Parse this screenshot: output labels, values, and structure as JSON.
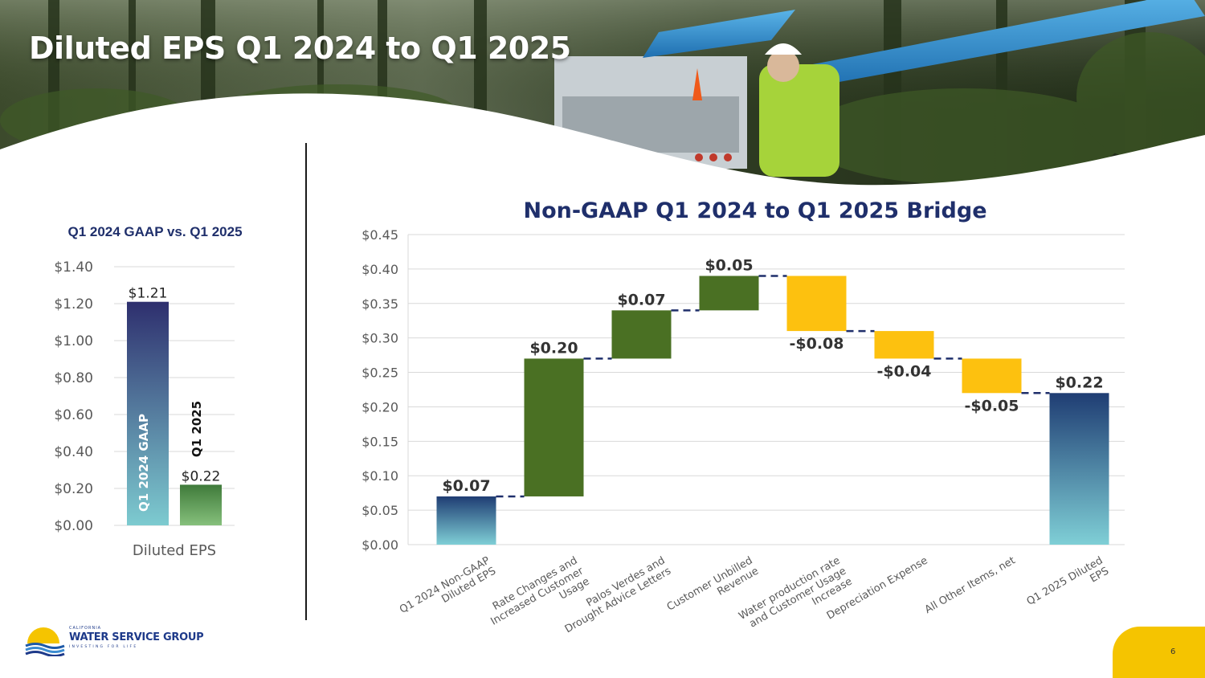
{
  "slide": {
    "title": "Diluted EPS Q1 2024 to Q1 2025",
    "page_number": "6"
  },
  "logo": {
    "top_text": "CALIFORNIA",
    "name": "WATER SERVICE GROUP",
    "tagline": "INVESTING FOR LIFE"
  },
  "colors": {
    "navy": "#1f2f6b",
    "gaap_gradient_top": "#2e2f6e",
    "gaap_gradient_bottom": "#7dcbd0",
    "q1_2025_top": "#3f7a3a",
    "q1_2025_bottom": "#86c07c",
    "increase": "#4a7023",
    "decrease": "#fdc10f",
    "total_top": "#1f3d73",
    "total_bottom": "#7fcfd6",
    "grid": "#d9d9d9",
    "axis_text": "#595959"
  },
  "chart_data": [
    {
      "type": "bar",
      "title": "Q1 2024 GAAP vs. Q1 2025",
      "categories": [
        "Diluted EPS"
      ],
      "series": [
        {
          "name": "Q1 2024 GAAP",
          "values": [
            1.21
          ],
          "label": "$1.21"
        },
        {
          "name": "Q1 2025",
          "values": [
            0.22
          ],
          "label": "$0.22"
        }
      ],
      "ylim": [
        0,
        1.4
      ],
      "yticks": [
        "$0.00",
        "$0.20",
        "$0.40",
        "$0.60",
        "$0.80",
        "$1.00",
        "$1.20",
        "$1.40"
      ],
      "xlabel": "Diluted EPS",
      "grid": true
    },
    {
      "type": "waterfall",
      "title": "Non-GAAP Q1 2024 to Q1 2025 Bridge",
      "ylim": [
        0,
        0.45
      ],
      "yticks": [
        "$0.00",
        "$0.05",
        "$0.10",
        "$0.15",
        "$0.20",
        "$0.25",
        "$0.30",
        "$0.35",
        "$0.40",
        "$0.45"
      ],
      "grid": true,
      "steps": [
        {
          "category": [
            "Q1 2024 Non-GAAP",
            "Diluted EPS"
          ],
          "kind": "total",
          "start": 0,
          "end": 0.07,
          "label": "$0.07"
        },
        {
          "category": [
            "Rate Changes and",
            "Increased Customer",
            "Usage"
          ],
          "kind": "increase",
          "start": 0.07,
          "end": 0.27,
          "label": "$0.20"
        },
        {
          "category": [
            "Palos Verdes and",
            "Drought Advice Letters"
          ],
          "kind": "increase",
          "start": 0.27,
          "end": 0.34,
          "label": "$0.07"
        },
        {
          "category": [
            "Customer Unbilled",
            "Revenue"
          ],
          "kind": "increase",
          "start": 0.34,
          "end": 0.39,
          "label": "$0.05"
        },
        {
          "category": [
            "Water production rate",
            "and Customer Usage",
            "Increase"
          ],
          "kind": "decrease",
          "start": 0.39,
          "end": 0.31,
          "label": "-$0.08"
        },
        {
          "category": [
            "Depreciation Expense"
          ],
          "kind": "decrease",
          "start": 0.31,
          "end": 0.27,
          "label": "-$0.04"
        },
        {
          "category": [
            "All Other Items, net"
          ],
          "kind": "decrease",
          "start": 0.27,
          "end": 0.22,
          "label": "-$0.05"
        },
        {
          "category": [
            "Q1 2025 Diluted",
            "EPS"
          ],
          "kind": "total",
          "start": 0,
          "end": 0.22,
          "label": "$0.22"
        }
      ]
    }
  ]
}
